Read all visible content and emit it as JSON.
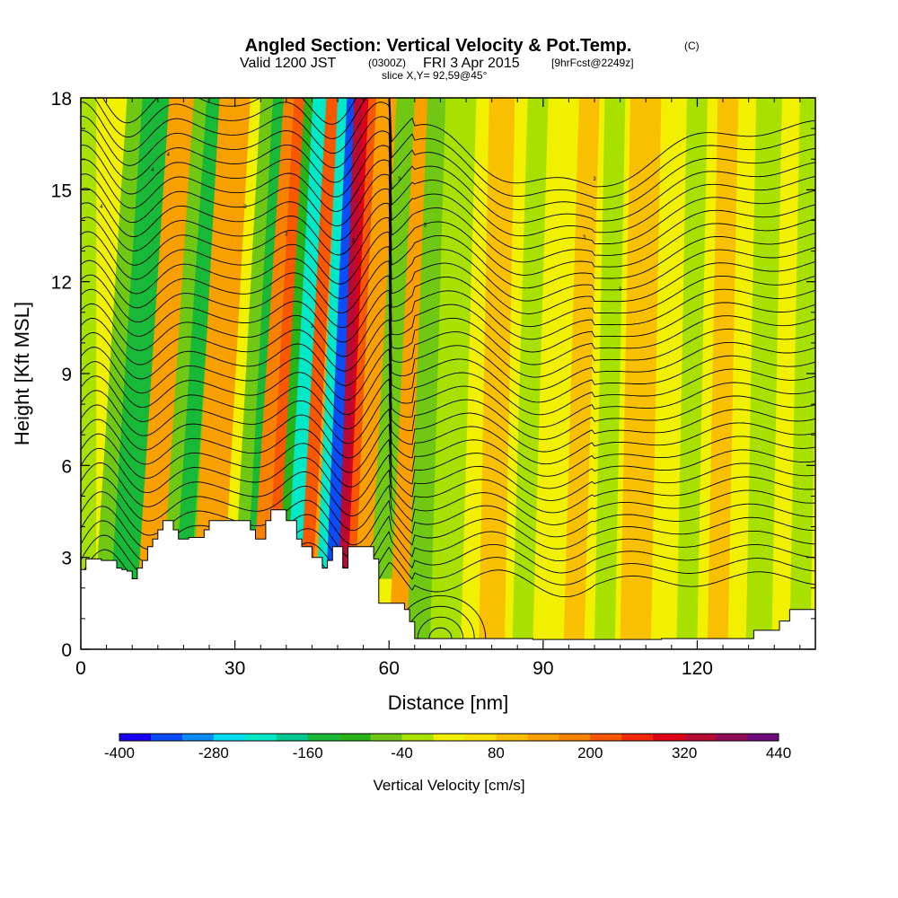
{
  "chart_data": {
    "type": "heatmap",
    "title": {
      "main": "Angled Section: Vertical Velocity & Pot.Temp.",
      "units_tag": "(C)",
      "valid_prefix": "Valid 1200 JST",
      "utc": "(0300Z)",
      "date": "FRI 3 Apr 2015",
      "forecast": "[9hrFcst@2249z]",
      "slice": "slice X,Y= 92,59@45°"
    },
    "xlabel": "Distance [nm]",
    "ylabel": "Height [Kft MSL]",
    "xlim": [
      0,
      143
    ],
    "ylim": [
      0,
      18
    ],
    "x_ticks": [
      0,
      30,
      60,
      90,
      120
    ],
    "y_ticks": [
      0,
      3,
      6,
      9,
      12,
      15,
      18
    ],
    "colorbar": {
      "label": "Vertical Velocity [cm/s]",
      "tick_labels": [
        -400,
        -280,
        -160,
        -40,
        80,
        200,
        320,
        440
      ],
      "colors": [
        "#1a00f0",
        "#0a4cf5",
        "#0a8cf5",
        "#00dcf0",
        "#00e8c8",
        "#00c890",
        "#18b838",
        "#28b418",
        "#70c814",
        "#a8e000",
        "#f0f000",
        "#f8e000",
        "#f8c000",
        "#f8a000",
        "#f88200",
        "#f85800",
        "#f02808",
        "#e00018",
        "#b80a32",
        "#900a5a",
        "#6e0a7a"
      ]
    },
    "surface_cut": [
      [
        0,
        2.6
      ],
      [
        1,
        2.6
      ],
      [
        1,
        2.95
      ],
      [
        4,
        2.95
      ],
      [
        4,
        2.9
      ],
      [
        7,
        2.9
      ],
      [
        7,
        2.65
      ],
      [
        8,
        2.65
      ],
      [
        8,
        2.6
      ],
      [
        9,
        2.6
      ],
      [
        9,
        2.55
      ],
      [
        10,
        2.55
      ],
      [
        10,
        2.3
      ],
      [
        11,
        2.3
      ],
      [
        11,
        2.65
      ],
      [
        12,
        2.65
      ],
      [
        12,
        2.9
      ],
      [
        13,
        2.9
      ],
      [
        13,
        3.35
      ],
      [
        14,
        3.35
      ],
      [
        14,
        3.6
      ],
      [
        15,
        3.6
      ],
      [
        15,
        3.9
      ],
      [
        16,
        3.9
      ],
      [
        16,
        4.2
      ],
      [
        18,
        4.2
      ],
      [
        18,
        3.9
      ],
      [
        19,
        3.9
      ],
      [
        19,
        3.6
      ],
      [
        21,
        3.6
      ],
      [
        21,
        3.65
      ],
      [
        24,
        3.65
      ],
      [
        24,
        3.9
      ],
      [
        25,
        3.9
      ],
      [
        25,
        4.2
      ],
      [
        33,
        4.2
      ],
      [
        33,
        3.9
      ],
      [
        34,
        3.9
      ],
      [
        34,
        3.6
      ],
      [
        36,
        3.6
      ],
      [
        36,
        4.2
      ],
      [
        37,
        4.2
      ],
      [
        37,
        4.55
      ],
      [
        40,
        4.55
      ],
      [
        40,
        4.2
      ],
      [
        42,
        4.2
      ],
      [
        42,
        3.6
      ],
      [
        43,
        3.6
      ],
      [
        43,
        3.35
      ],
      [
        45,
        3.35
      ],
      [
        45,
        3.0
      ],
      [
        47,
        3.0
      ],
      [
        47,
        2.65
      ],
      [
        48,
        2.65
      ],
      [
        48,
        2.9
      ],
      [
        49,
        2.9
      ],
      [
        49,
        3.35
      ],
      [
        51,
        3.35
      ],
      [
        51,
        2.65
      ],
      [
        52,
        2.65
      ],
      [
        52,
        3.35
      ],
      [
        57,
        3.35
      ],
      [
        57,
        2.95
      ],
      [
        58,
        2.95
      ],
      [
        58,
        1.5
      ],
      [
        63,
        1.5
      ],
      [
        63,
        1.3
      ],
      [
        64,
        1.3
      ],
      [
        64,
        0.9
      ],
      [
        65,
        0.9
      ],
      [
        65,
        0.35
      ],
      [
        88,
        0.35
      ],
      [
        88,
        0.32
      ],
      [
        113,
        0.32
      ],
      [
        113,
        0.35
      ],
      [
        131,
        0.35
      ],
      [
        131,
        0.62
      ],
      [
        136,
        0.62
      ],
      [
        136,
        0.92
      ],
      [
        138,
        0.92
      ],
      [
        138,
        1.3
      ],
      [
        143,
        1.3
      ]
    ],
    "contour_labels": [
      "4",
      "4",
      "4",
      "3",
      "3",
      "3",
      "3",
      "3",
      "3",
      "3",
      "3",
      "3"
    ],
    "grid": false,
    "legend_position": "bottom"
  }
}
